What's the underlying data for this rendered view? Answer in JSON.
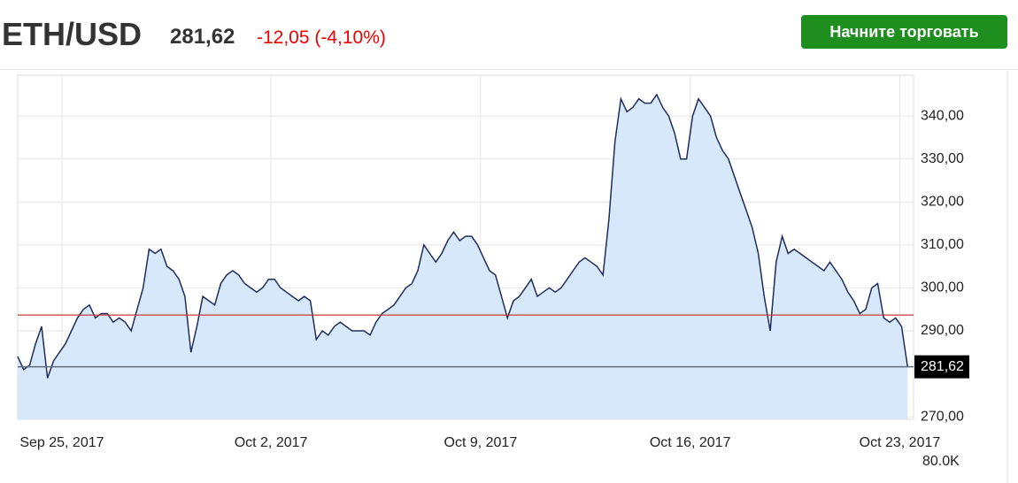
{
  "header": {
    "symbol": "ETH/USD",
    "price": "281,62",
    "change": "-12,05 (-4,10%)",
    "button": "Начните торговать"
  },
  "chart_data": {
    "type": "area",
    "values": [
      284,
      281,
      282,
      287,
      291,
      279,
      283,
      285,
      287,
      290,
      293,
      295,
      296,
      293,
      294,
      294,
      292,
      293,
      292,
      290,
      295,
      300,
      309,
      308,
      309,
      305,
      304,
      302,
      298,
      285,
      291,
      298,
      297,
      296,
      301,
      303,
      304,
      303,
      301,
      300,
      299,
      300,
      302,
      302,
      300,
      299,
      298,
      297,
      298,
      297,
      288,
      290,
      289,
      291,
      292,
      291,
      290,
      290,
      290,
      289,
      292,
      294,
      295,
      296,
      298,
      300,
      301,
      304,
      310,
      308,
      306,
      308,
      311,
      313,
      311,
      312,
      312,
      310,
      307,
      304,
      303,
      298,
      293,
      297,
      298,
      300,
      302,
      298,
      299,
      300,
      299,
      300,
      302,
      304,
      306,
      307,
      306,
      305,
      303,
      316,
      334,
      344,
      341,
      342,
      344,
      343,
      343,
      345,
      342,
      340,
      336,
      330,
      330,
      340,
      344,
      342,
      340,
      335,
      332,
      330,
      326,
      322,
      318,
      314,
      308,
      298,
      290,
      306,
      312,
      308,
      309,
      308,
      307,
      306,
      305,
      304,
      306,
      304,
      302,
      299,
      297,
      294,
      295,
      300,
      301,
      293,
      292,
      293,
      291,
      281.62
    ],
    "color": "#1f2d5c",
    "fill_color": "#d7e8fb",
    "xlim": [
      0,
      150
    ],
    "xticks": [
      {
        "value": 7.4,
        "label": "Sep 25, 2017"
      },
      {
        "value": 42.4,
        "label": "Oct 2, 2017"
      },
      {
        "value": 77.5,
        "label": "Oct 9, 2017"
      },
      {
        "value": 112.6,
        "label": "Oct 16, 2017"
      },
      {
        "value": 147.7,
        "label": "Oct 23, 2017"
      }
    ],
    "ylim": [
      269.4,
      349.5
    ],
    "yticks": [
      {
        "value": 270,
        "label": "270,00"
      },
      {
        "value": 290,
        "label": "290,00"
      },
      {
        "value": 300,
        "label": "300,00"
      },
      {
        "value": 310,
        "label": "310,00"
      },
      {
        "value": 320,
        "label": "320,00"
      },
      {
        "value": 330,
        "label": "330,00"
      },
      {
        "value": 340,
        "label": "340,00"
      }
    ],
    "grid": true,
    "previous_close": 293.67,
    "previous_close_color": "#c83a3a",
    "current_price": {
      "value": 281.62,
      "label": "281,62"
    },
    "volume_label": "80.0K"
  }
}
